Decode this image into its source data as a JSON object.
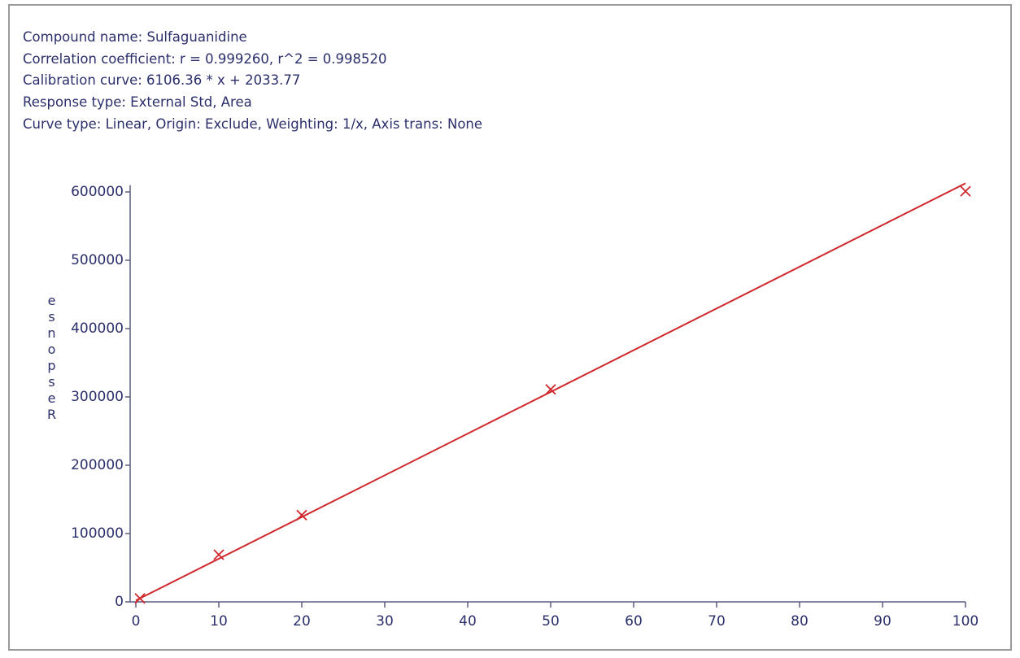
{
  "chart_data": {
    "type": "scatter",
    "title": "Compound name: Sulfaguanidine",
    "annotations": [
      "Correlation coefficient: r = 0.999260, r^2 = 0.998520",
      "Calibration curve: 6106.36 * x + 2033.77",
      "Response type: External Std, Area",
      "Curve type: Linear, Origin: Exclude, Weighting: 1/x, Axis trans: None"
    ],
    "ylabel": "Response",
    "x": [
      0.5,
      10,
      20,
      50,
      100
    ],
    "values": [
      5000,
      69000,
      127000,
      311000,
      601000
    ],
    "color": "#d0282c",
    "fit": {
      "type": "line",
      "x": [
        0,
        100
      ],
      "values": [
        2033.77,
        612669.77
      ],
      "color": "#d0282c"
    },
    "xlim": [
      0,
      100
    ],
    "ylim": [
      0,
      610000
    ],
    "xticks": [
      0,
      10,
      20,
      30,
      40,
      50,
      60,
      70,
      80,
      90,
      100
    ],
    "yticks": [
      0,
      100000,
      200000,
      300000,
      400000,
      500000,
      600000
    ]
  }
}
